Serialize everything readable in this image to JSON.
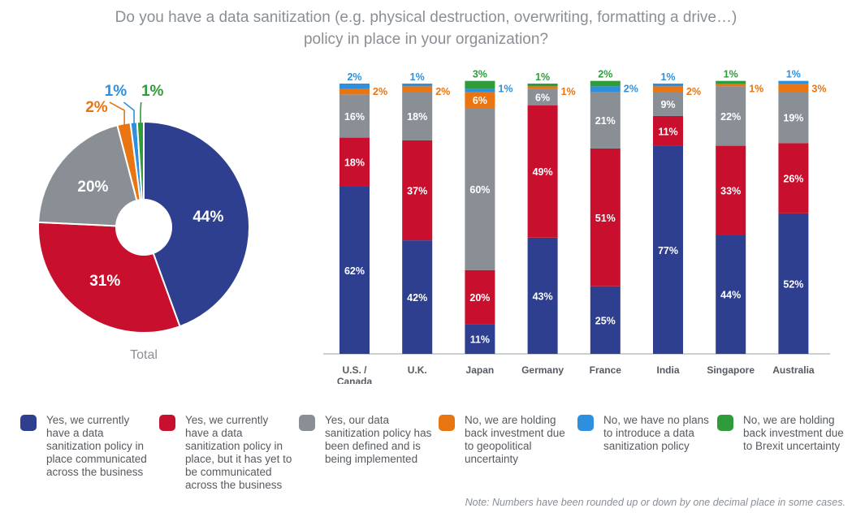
{
  "title": {
    "line1": "Do you have a data sanitization (e.g. physical destruction, overwriting, formatting a drive…)",
    "line2": "policy in place in your organization?"
  },
  "colors": {
    "blue": "#2e3f8f",
    "red": "#c8102e",
    "gray": "#8a8f96",
    "orange": "#e87511",
    "lightblue": "#2e8fde",
    "green": "#2e9c3a"
  },
  "chart_data": [
    {
      "type": "pie",
      "label": "Total",
      "slices": [
        {
          "value": 44,
          "label": "44%",
          "color": "blue"
        },
        {
          "value": 31,
          "label": "31%",
          "color": "red"
        },
        {
          "value": 20,
          "label": "20%",
          "color": "gray"
        },
        {
          "value": 2,
          "label": "2%",
          "color": "orange"
        },
        {
          "value": 1,
          "label": "1%",
          "color": "lightblue"
        },
        {
          "value": 1,
          "label": "1%",
          "color": "green"
        }
      ]
    },
    {
      "type": "bar",
      "stacked": true,
      "categories": [
        "U.S. / Canada",
        "U.K.",
        "Japan",
        "Germany",
        "France",
        "India",
        "Singapore",
        "Australia"
      ],
      "series": [
        {
          "color": "blue",
          "values": [
            62,
            42,
            11,
            43,
            25,
            77,
            44,
            52
          ]
        },
        {
          "color": "red",
          "values": [
            18,
            37,
            20,
            49,
            51,
            11,
            33,
            26
          ]
        },
        {
          "color": "gray",
          "values": [
            16,
            18,
            60,
            6,
            21,
            9,
            22,
            19
          ]
        },
        {
          "color": "orange",
          "values": [
            2,
            2,
            6,
            1,
            0,
            2,
            1,
            3
          ]
        },
        {
          "color": "lightblue",
          "values": [
            2,
            1,
            1,
            0,
            2,
            1,
            0,
            1
          ]
        },
        {
          "color": "green",
          "values": [
            0,
            0,
            3,
            1,
            2,
            0,
            1,
            0
          ]
        }
      ],
      "ylim": [
        0,
        100
      ]
    }
  ],
  "legend": [
    {
      "color": "blue",
      "text": "Yes, we currently have a data sanitization policy in place communicated across the business"
    },
    {
      "color": "red",
      "text": "Yes, we currently have a data sanitization policy in place, but it has yet to be communicated across the business"
    },
    {
      "color": "gray",
      "text": "Yes, our data sanitization policy has been defined and is being implemented"
    },
    {
      "color": "orange",
      "text": "No, we are holding back investment due to geopolitical uncertainty"
    },
    {
      "color": "lightblue",
      "text": "No, we have no plans to introduce a data sanitization policy"
    },
    {
      "color": "green",
      "text": "No, we are holding back investment due to Brexit uncertainty"
    }
  ],
  "note": "Note: Numbers have been rounded up or down by one decimal place in some cases."
}
